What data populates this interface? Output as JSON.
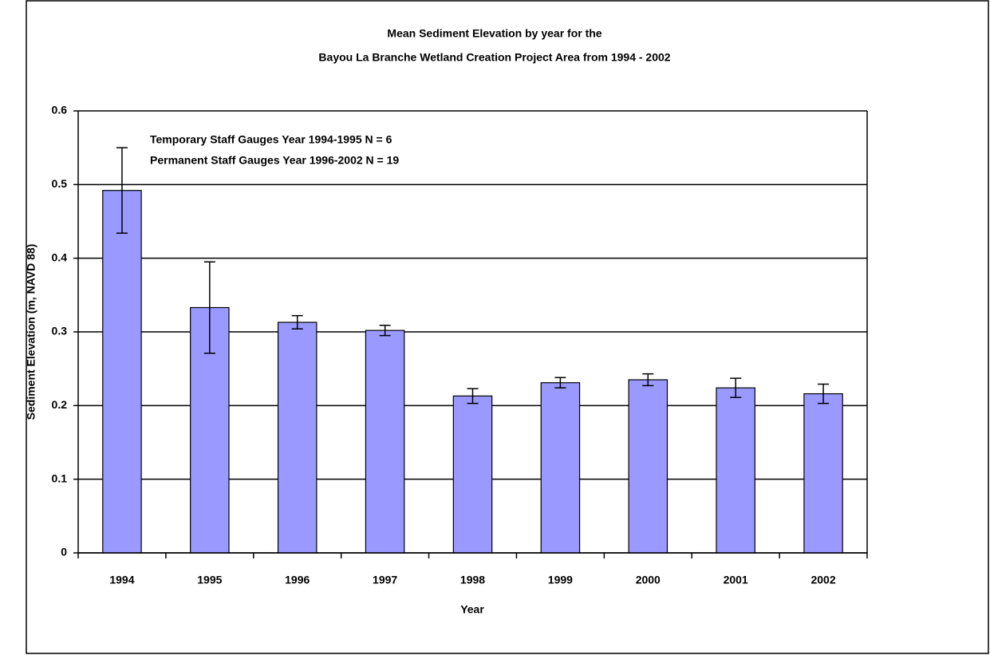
{
  "chart_data": {
    "type": "bar",
    "title": "Mean Sediment Elevation by year for the",
    "subtitle": "Bayou La Branche Wetland Creation Project Area from 1994 - 2002",
    "annotations": [
      "Temporary Staff Gauges Year 1994-1995 N = 6",
      "Permanent Staff Gauges Year 1996-2002 N = 19"
    ],
    "x_label": "Year",
    "y_label": "Sediment Elevation (m, NAVD 88)",
    "categories": [
      "1994",
      "1995",
      "1996",
      "1997",
      "1998",
      "1999",
      "2000",
      "2001",
      "2002"
    ],
    "values": [
      0.492,
      0.333,
      0.313,
      0.302,
      0.213,
      0.231,
      0.235,
      0.224,
      0.216
    ],
    "errors": [
      0.058,
      0.062,
      0.009,
      0.007,
      0.01,
      0.007,
      0.008,
      0.013,
      0.013
    ],
    "color": "#9999ff",
    "ylim": [
      0,
      0.6
    ],
    "yticks": [
      0,
      0.1,
      0.2,
      0.3,
      0.4,
      0.5,
      0.6
    ],
    "grid": true
  }
}
